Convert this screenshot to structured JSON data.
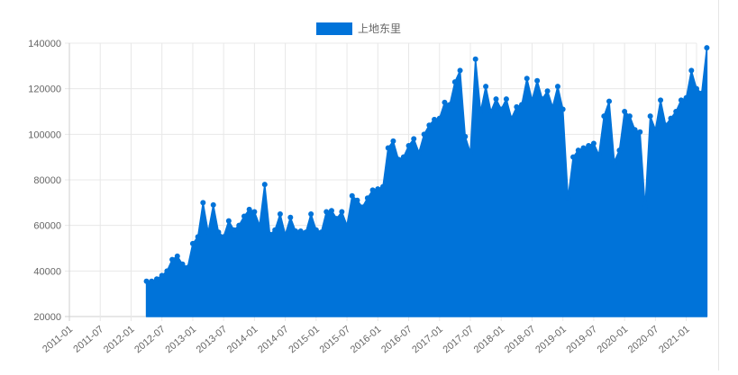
{
  "chart_data": {
    "type": "area",
    "title": "",
    "xlabel": "",
    "ylabel": "",
    "legend_position": "top",
    "grid": true,
    "ylim": [
      20000,
      140000
    ],
    "y_ticks": [
      "20000",
      "40000",
      "60000",
      "80000",
      "100000",
      "120000",
      "140000"
    ],
    "x_ticks": [
      "2011-01",
      "2011-07",
      "2012-01",
      "2012-07",
      "2013-01",
      "2013-07",
      "2014-01",
      "2014-07",
      "2015-01",
      "2015-07",
      "2016-01",
      "2016-07",
      "2017-01",
      "2017-07",
      "2018-01",
      "2018-07",
      "2019-01",
      "2019-07",
      "2020-01",
      "2020-07",
      "2021-01"
    ],
    "x_start": "2011-01",
    "x_end": "2021-03",
    "series": [
      {
        "name": "上地东里",
        "color": "#0073d9",
        "points": [
          {
            "x": "2012-04",
            "y": 35500
          },
          {
            "x": "2012-05",
            "y": 35500
          },
          {
            "x": "2012-06",
            "y": 36500
          },
          {
            "x": "2012-07",
            "y": 38000
          },
          {
            "x": "2012-08",
            "y": 40000
          },
          {
            "x": "2012-09",
            "y": 45000
          },
          {
            "x": "2012-10",
            "y": 46500
          },
          {
            "x": "2012-11",
            "y": 43000
          },
          {
            "x": "2012-12",
            "y": 41500
          },
          {
            "x": "2013-01",
            "y": 52000
          },
          {
            "x": "2013-02",
            "y": 55000
          },
          {
            "x": "2013-03",
            "y": 70000
          },
          {
            "x": "2013-04",
            "y": 57000
          },
          {
            "x": "2013-05",
            "y": 69000
          },
          {
            "x": "2013-06",
            "y": 57000
          },
          {
            "x": "2013-07",
            "y": 55000
          },
          {
            "x": "2013-08",
            "y": 62000
          },
          {
            "x": "2013-09",
            "y": 58000
          },
          {
            "x": "2013-10",
            "y": 60000
          },
          {
            "x": "2013-11",
            "y": 64000
          },
          {
            "x": "2013-12",
            "y": 67000
          },
          {
            "x": "2014-01",
            "y": 66000
          },
          {
            "x": "2014-02",
            "y": 60000
          },
          {
            "x": "2014-03",
            "y": 78000
          },
          {
            "x": "2014-04",
            "y": 56000
          },
          {
            "x": "2014-05",
            "y": 58000
          },
          {
            "x": "2014-06",
            "y": 65000
          },
          {
            "x": "2014-07",
            "y": 56000
          },
          {
            "x": "2014-08",
            "y": 63500
          },
          {
            "x": "2014-09",
            "y": 57500
          },
          {
            "x": "2014-10",
            "y": 57500
          },
          {
            "x": "2014-11",
            "y": 57000
          },
          {
            "x": "2014-12",
            "y": 65000
          },
          {
            "x": "2015-01",
            "y": 58000
          },
          {
            "x": "2015-02",
            "y": 57000
          },
          {
            "x": "2015-03",
            "y": 66000
          },
          {
            "x": "2015-04",
            "y": 66500
          },
          {
            "x": "2015-05",
            "y": 63000
          },
          {
            "x": "2015-06",
            "y": 66000
          },
          {
            "x": "2015-07",
            "y": 60000
          },
          {
            "x": "2015-08",
            "y": 73000
          },
          {
            "x": "2015-09",
            "y": 71000
          },
          {
            "x": "2015-10",
            "y": 68000
          },
          {
            "x": "2015-11",
            "y": 72000
          },
          {
            "x": "2015-12",
            "y": 75500
          },
          {
            "x": "2016-01",
            "y": 76000
          },
          {
            "x": "2016-02",
            "y": 77000
          },
          {
            "x": "2016-03",
            "y": 94000
          },
          {
            "x": "2016-04",
            "y": 97000
          },
          {
            "x": "2016-05",
            "y": 89000
          },
          {
            "x": "2016-06",
            "y": 90000
          },
          {
            "x": "2016-07",
            "y": 95000
          },
          {
            "x": "2016-08",
            "y": 98000
          },
          {
            "x": "2016-09",
            "y": 92000
          },
          {
            "x": "2016-10",
            "y": 100000
          },
          {
            "x": "2016-11",
            "y": 104000
          },
          {
            "x": "2016-12",
            "y": 106500
          },
          {
            "x": "2017-01",
            "y": 107000
          },
          {
            "x": "2017-02",
            "y": 114000
          },
          {
            "x": "2017-03",
            "y": 113000
          },
          {
            "x": "2017-04",
            "y": 123000
          },
          {
            "x": "2017-05",
            "y": 128000
          },
          {
            "x": "2017-06",
            "y": 99000
          },
          {
            "x": "2017-07",
            "y": 92000
          },
          {
            "x": "2017-08",
            "y": 133000
          },
          {
            "x": "2017-09",
            "y": 110000
          },
          {
            "x": "2017-10",
            "y": 121000
          },
          {
            "x": "2017-11",
            "y": 110000
          },
          {
            "x": "2017-12",
            "y": 115500
          },
          {
            "x": "2018-01",
            "y": 111000
          },
          {
            "x": "2018-02",
            "y": 115500
          },
          {
            "x": "2018-03",
            "y": 107000
          },
          {
            "x": "2018-04",
            "y": 112000
          },
          {
            "x": "2018-05",
            "y": 113000
          },
          {
            "x": "2018-06",
            "y": 124500
          },
          {
            "x": "2018-07",
            "y": 115000
          },
          {
            "x": "2018-08",
            "y": 123500
          },
          {
            "x": "2018-09",
            "y": 115500
          },
          {
            "x": "2018-10",
            "y": 119000
          },
          {
            "x": "2018-11",
            "y": 112000
          },
          {
            "x": "2018-12",
            "y": 121000
          },
          {
            "x": "2019-01",
            "y": 111000
          },
          {
            "x": "2019-02",
            "y": 72000
          },
          {
            "x": "2019-03",
            "y": 90000
          },
          {
            "x": "2019-04",
            "y": 93000
          },
          {
            "x": "2019-05",
            "y": 94000
          },
          {
            "x": "2019-06",
            "y": 95000
          },
          {
            "x": "2019-07",
            "y": 96000
          },
          {
            "x": "2019-08",
            "y": 91000
          },
          {
            "x": "2019-09",
            "y": 108000
          },
          {
            "x": "2019-10",
            "y": 114500
          },
          {
            "x": "2019-11",
            "y": 88000
          },
          {
            "x": "2019-12",
            "y": 93000
          },
          {
            "x": "2020-01",
            "y": 110000
          },
          {
            "x": "2020-02",
            "y": 108000
          },
          {
            "x": "2020-03",
            "y": 102000
          },
          {
            "x": "2020-04",
            "y": 101000
          },
          {
            "x": "2020-05",
            "y": 68000
          },
          {
            "x": "2020-06",
            "y": 108000
          },
          {
            "x": "2020-07",
            "y": 102000
          },
          {
            "x": "2020-08",
            "y": 115000
          },
          {
            "x": "2020-09",
            "y": 104000
          },
          {
            "x": "2020-10",
            "y": 107000
          },
          {
            "x": "2020-11",
            "y": 110000
          },
          {
            "x": "2020-12",
            "y": 115000
          },
          {
            "x": "2021-01",
            "y": 116000
          },
          {
            "x": "2021-02",
            "y": 128000
          },
          {
            "x": "2021-03",
            "y": 120000
          },
          {
            "x": "2021-04",
            "y": 118000
          },
          {
            "x": "2021-05",
            "y": 138000
          }
        ]
      }
    ]
  }
}
